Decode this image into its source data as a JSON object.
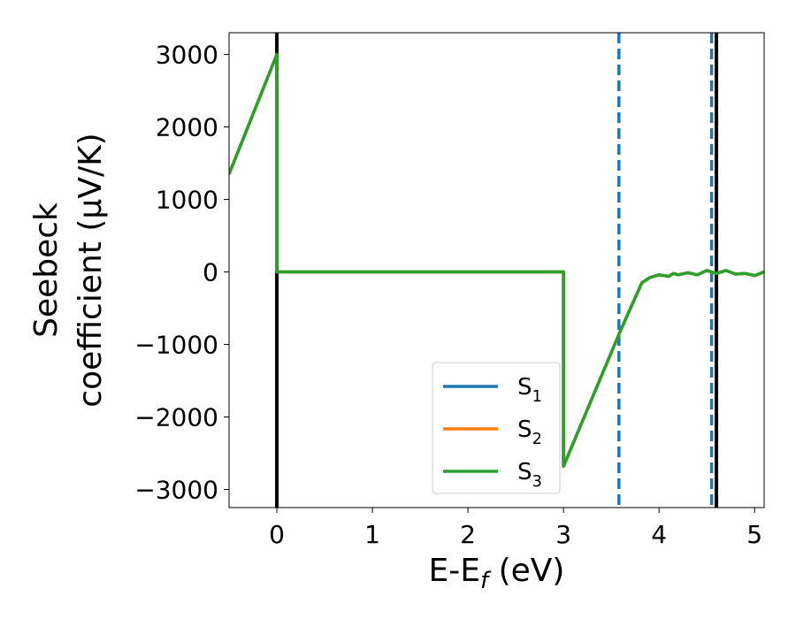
{
  "chart_data": {
    "type": "line",
    "xlabel": "E-E",
    "xlabel_sub": "f",
    "xlabel_unit": " (eV)",
    "ylabel_line1": "Seebeck",
    "ylabel_line2": "coefficient  (μV/K)",
    "xlim": [
      -0.5,
      5.1
    ],
    "ylim": [
      -3250,
      3300
    ],
    "xticks": [
      0,
      1,
      2,
      3,
      4,
      5
    ],
    "yticks": [
      -3000,
      -2000,
      -1000,
      0,
      1000,
      2000,
      3000
    ],
    "ytick_labels": [
      "−3000",
      "−2000",
      "−1000",
      "0",
      "1000",
      "2000",
      "3000"
    ],
    "grid": false,
    "legend_position": "lower-center",
    "series": [
      {
        "name": "S",
        "name_sub": "1",
        "color": "#1f77b4",
        "x": [
          -0.5,
          0.0,
          0.0,
          3.0,
          3.0,
          3.6,
          3.82,
          3.9,
          4.0,
          4.1,
          4.15,
          4.2,
          4.3,
          4.4,
          4.5,
          4.6,
          4.7,
          4.8,
          4.9,
          5.0,
          5.1
        ],
        "y": [
          1350,
          3000,
          0,
          0,
          -2680,
          -800,
          -150,
          -80,
          -40,
          -60,
          -20,
          -40,
          -10,
          -40,
          20,
          -20,
          20,
          -30,
          -20,
          -50,
          0
        ]
      },
      {
        "name": "S",
        "name_sub": "2",
        "color": "#ff7f0e",
        "x": [
          -0.5,
          0.0,
          0.0,
          3.0,
          3.0,
          3.6,
          3.82,
          3.9,
          4.0,
          4.1,
          4.15,
          4.2,
          4.3,
          4.4,
          4.5,
          4.6,
          4.7,
          4.8,
          4.9,
          5.0,
          5.1
        ],
        "y": [
          1350,
          3000,
          0,
          0,
          -2680,
          -800,
          -150,
          -80,
          -40,
          -60,
          -20,
          -40,
          -10,
          -40,
          20,
          -20,
          20,
          -30,
          -20,
          -50,
          0
        ]
      },
      {
        "name": "S",
        "name_sub": "3",
        "color": "#2ca02c",
        "x": [
          -0.5,
          0.0,
          0.0,
          3.0,
          3.0,
          3.6,
          3.82,
          3.9,
          4.0,
          4.1,
          4.15,
          4.2,
          4.3,
          4.4,
          4.5,
          4.6,
          4.7,
          4.8,
          4.9,
          5.0,
          5.1
        ],
        "y": [
          1350,
          3000,
          0,
          0,
          -2680,
          -800,
          -150,
          -80,
          -40,
          -60,
          -20,
          -40,
          -10,
          -40,
          20,
          -20,
          20,
          -30,
          -20,
          -50,
          0
        ]
      }
    ],
    "vlines": [
      {
        "x": 0.0,
        "color": "#000000",
        "style": "solid"
      },
      {
        "x": 4.6,
        "color": "#000000",
        "style": "solid"
      },
      {
        "x": 3.58,
        "color": "#1f77b4",
        "style": "dashed"
      },
      {
        "x": 4.55,
        "color": "#1f77b4",
        "style": "dashed"
      }
    ]
  }
}
